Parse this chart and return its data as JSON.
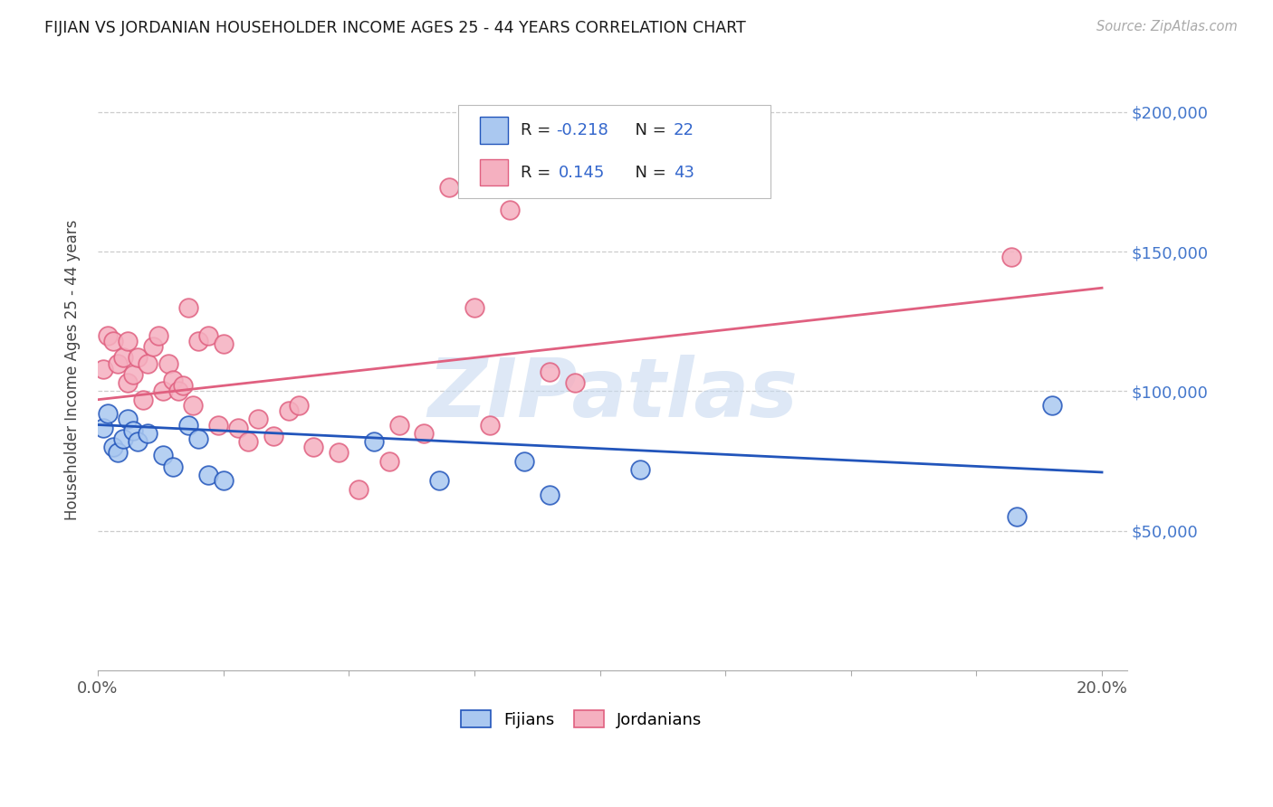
{
  "title": "FIJIAN VS JORDANIAN HOUSEHOLDER INCOME AGES 25 - 44 YEARS CORRELATION CHART",
  "source": "Source: ZipAtlas.com",
  "ylabel": "Householder Income Ages 25 - 44 years",
  "xlim": [
    0.0,
    0.205
  ],
  "ylim": [
    0,
    215000
  ],
  "xtick_positions": [
    0.0,
    0.025,
    0.05,
    0.075,
    0.1,
    0.125,
    0.15,
    0.175,
    0.2
  ],
  "xtick_labels": [
    "0.0%",
    "",
    "",
    "",
    "",
    "",
    "",
    "",
    "20.0%"
  ],
  "ytick_values": [
    50000,
    100000,
    150000,
    200000
  ],
  "ytick_labels": [
    "$50,000",
    "$100,000",
    "$150,000",
    "$200,000"
  ],
  "watermark": "ZIPatlas",
  "fijian_color": "#aac8f0",
  "jordanian_color": "#f5b0c0",
  "fijian_line_color": "#2255bb",
  "jordanian_line_color": "#e06080",
  "legend_label_fijians": "Fijians",
  "legend_label_jordanians": "Jordanians",
  "fijians_x": [
    0.001,
    0.002,
    0.003,
    0.004,
    0.005,
    0.006,
    0.007,
    0.008,
    0.01,
    0.013,
    0.015,
    0.018,
    0.02,
    0.022,
    0.025,
    0.055,
    0.068,
    0.085,
    0.09,
    0.108,
    0.183,
    0.19
  ],
  "fijians_y": [
    87000,
    92000,
    80000,
    78000,
    83000,
    90000,
    86000,
    82000,
    85000,
    77000,
    73000,
    88000,
    83000,
    70000,
    68000,
    82000,
    68000,
    75000,
    63000,
    72000,
    55000,
    95000
  ],
  "jordanians_x": [
    0.001,
    0.002,
    0.003,
    0.004,
    0.005,
    0.006,
    0.006,
    0.007,
    0.008,
    0.009,
    0.01,
    0.011,
    0.012,
    0.013,
    0.014,
    0.015,
    0.016,
    0.017,
    0.018,
    0.019,
    0.02,
    0.022,
    0.024,
    0.025,
    0.028,
    0.03,
    0.032,
    0.035,
    0.038,
    0.04,
    0.043,
    0.048,
    0.052,
    0.058,
    0.06,
    0.065,
    0.07,
    0.075,
    0.078,
    0.082,
    0.09,
    0.095,
    0.182
  ],
  "jordanians_y": [
    108000,
    120000,
    118000,
    110000,
    112000,
    103000,
    118000,
    106000,
    112000,
    97000,
    110000,
    116000,
    120000,
    100000,
    110000,
    104000,
    100000,
    102000,
    130000,
    95000,
    118000,
    120000,
    88000,
    117000,
    87000,
    82000,
    90000,
    84000,
    93000,
    95000,
    80000,
    78000,
    65000,
    75000,
    88000,
    85000,
    173000,
    130000,
    88000,
    165000,
    107000,
    103000,
    148000
  ],
  "fijian_slope": -85000,
  "fijian_intercept": 88000,
  "jordanian_slope": 200000,
  "jordanian_intercept": 97000
}
